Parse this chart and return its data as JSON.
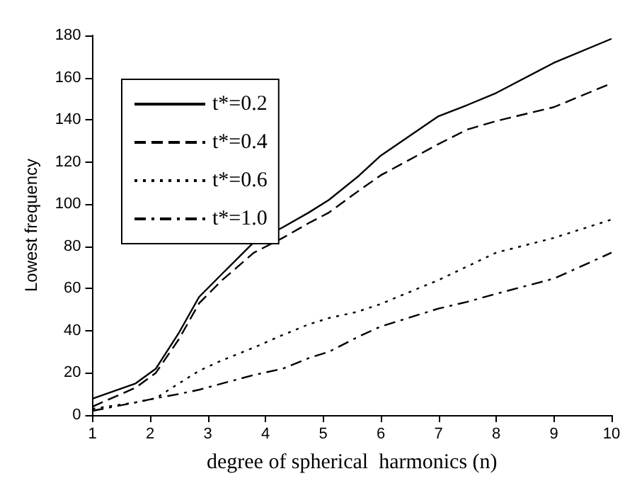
{
  "chart_data": {
    "type": "line",
    "xlabel": "degree of spherical  harmonics (n)",
    "ylabel": "Lowest frequency",
    "x": [
      1,
      1.75,
      2.1,
      2.5,
      2.85,
      3.25,
      3.8,
      4.3,
      4.75,
      5.1,
      5.6,
      6,
      7,
      7.5,
      8,
      9,
      10
    ],
    "series": [
      {
        "name": "t*=0.2",
        "color": "#000000",
        "line_style": "solid",
        "values": [
          7.8,
          15,
          22,
          39,
          56,
          67,
          82,
          89,
          96,
          102,
          113,
          123,
          141.7,
          147,
          152.7,
          167,
          178.4
        ]
      },
      {
        "name": "t*=0.4",
        "color": "#000000",
        "line_style": "dashed",
        "values": [
          4,
          13,
          20,
          36,
          53,
          64,
          77,
          84,
          91,
          96,
          106,
          113.7,
          128.5,
          135.4,
          139.4,
          146,
          157.3
        ]
      },
      {
        "name": "t*=0.6",
        "color": "#000000",
        "line_style": "dotted",
        "values": [
          3,
          6,
          8,
          15,
          21,
          26,
          32,
          38,
          43,
          46,
          49,
          52.7,
          64,
          70.5,
          77,
          84,
          92.7
        ]
      },
      {
        "name": "t*=1.0",
        "color": "#000000",
        "line_style": "dashdot",
        "values": [
          2,
          6,
          8,
          10,
          12,
          15,
          19,
          22,
          27,
          30,
          37,
          42,
          50.5,
          53.7,
          57.5,
          64.7,
          77
        ]
      }
    ],
    "xlim": [
      1,
      10
    ],
    "xticks": [
      1,
      2,
      3,
      4,
      5,
      6,
      7,
      8,
      9,
      10
    ],
    "ylim": [
      0,
      180
    ],
    "yticks": [
      0,
      20,
      40,
      60,
      80,
      100,
      120,
      140,
      160,
      180
    ],
    "grid": false,
    "legend": "top left",
    "marker": "none"
  }
}
